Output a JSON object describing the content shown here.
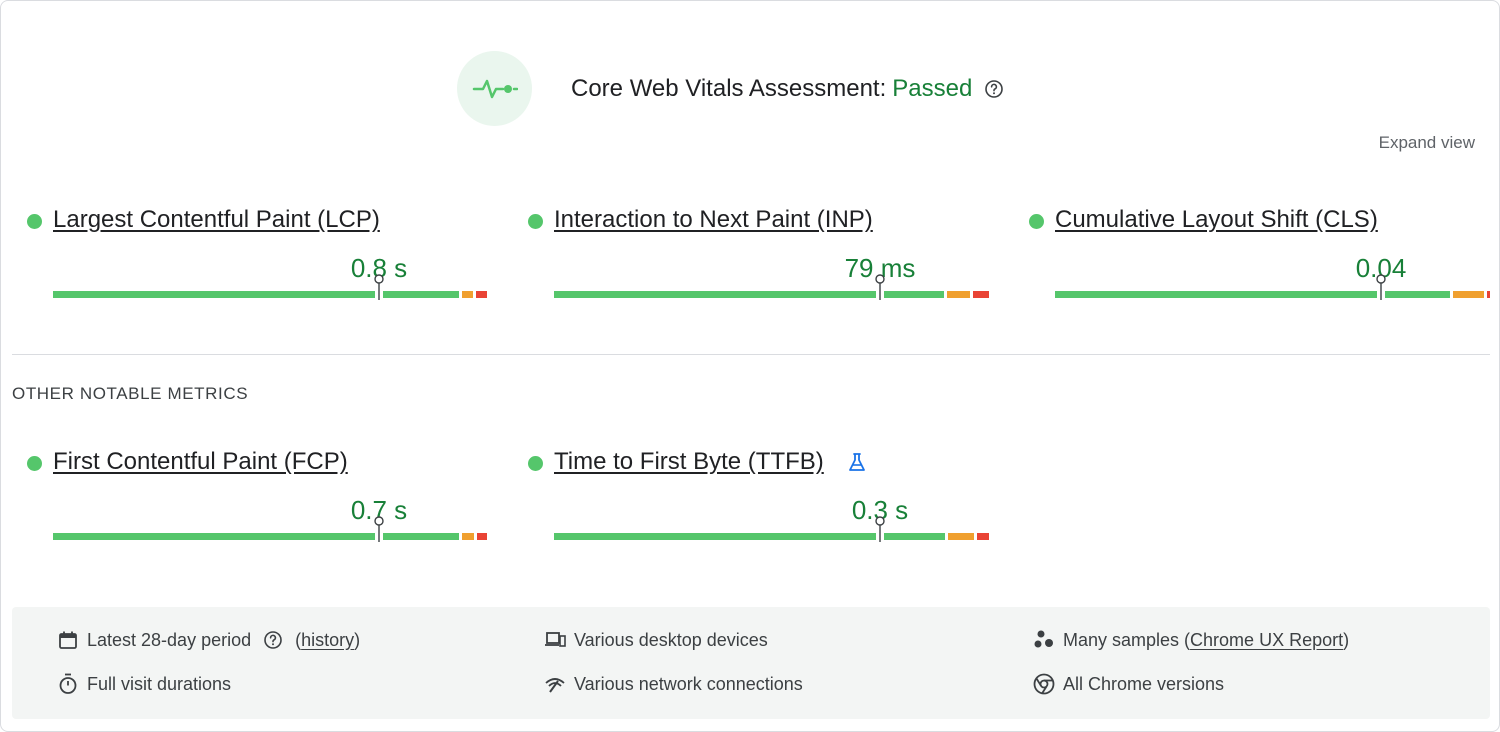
{
  "header": {
    "title": "Core Web Vitals Assessment:",
    "status": "Passed",
    "expand_label": "Expand view"
  },
  "core_metrics": [
    {
      "name": "Largest Contentful Paint (LCP)",
      "value": "0.8 s"
    },
    {
      "name": "Interaction to Next Paint (INP)",
      "value": "79 ms"
    },
    {
      "name": "Cumulative Layout Shift (CLS)",
      "value": "0.04"
    }
  ],
  "other_section": {
    "title": "OTHER NOTABLE METRICS",
    "metrics": [
      {
        "name": "First Contentful Paint (FCP)",
        "value": "0.7 s"
      },
      {
        "name": "Time to First Byte (TTFB)",
        "value": "0.3 s"
      }
    ]
  },
  "footer": {
    "period": "Latest 28-day period",
    "history_open": "(",
    "history_link": "history",
    "history_close": ")",
    "visit": "Full visit durations",
    "devices": "Various desktop devices",
    "network": "Various network connections",
    "samples_prefix": "Many samples (",
    "samples_link": "Chrome UX Report",
    "samples_suffix": ")",
    "versions": "All Chrome versions"
  },
  "colors": {
    "good": "#55c66b",
    "average": "#f0a02f",
    "poor": "#e94335",
    "passed_text": "#188038",
    "link_icon": "#1a73e8"
  },
  "icons": {
    "hero": "heartbeat-icon",
    "help": "help-circle-icon",
    "ttfb_badge": "flask-icon",
    "period": "calendar-icon",
    "visit": "timer-icon",
    "devices": "devices-icon",
    "network": "network-icon",
    "samples": "samples-icon",
    "versions": "chrome-icon"
  }
}
